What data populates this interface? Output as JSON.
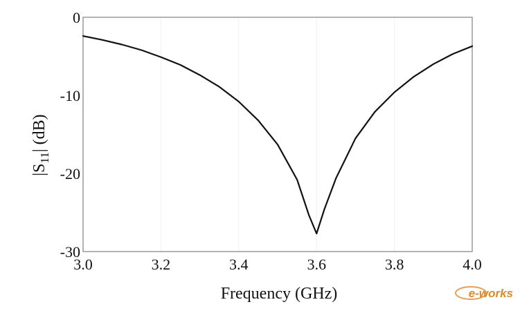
{
  "chart_data": {
    "type": "line",
    "title": "",
    "xlabel": "Frequency (GHz)",
    "ylabel_main": "|S",
    "ylabel_sub": "11",
    "ylabel_tail": "| (dB)",
    "xlim": [
      3.0,
      4.0
    ],
    "ylim": [
      -30,
      0
    ],
    "grid": false,
    "x_ticks": [
      "3.0",
      "3.2",
      "3.4",
      "3.6",
      "3.8",
      "4.0"
    ],
    "y_ticks": [
      "0",
      "-10",
      "-20",
      "-30"
    ],
    "series": [
      {
        "color": "#111111",
        "x": [
          3.0,
          3.05,
          3.1,
          3.15,
          3.2,
          3.25,
          3.3,
          3.35,
          3.4,
          3.45,
          3.5,
          3.55,
          3.58,
          3.6,
          3.62,
          3.65,
          3.7,
          3.75,
          3.8,
          3.85,
          3.9,
          3.95,
          4.0
        ],
        "y": [
          -2.4,
          -2.9,
          -3.5,
          -4.2,
          -5.1,
          -6.1,
          -7.4,
          -8.9,
          -10.8,
          -13.2,
          -16.3,
          -20.8,
          -25.3,
          -27.7,
          -24.6,
          -20.6,
          -15.5,
          -12.1,
          -9.6,
          -7.6,
          -6.0,
          -4.7,
          -3.7
        ]
      }
    ]
  },
  "watermark": {
    "text": "e-works",
    "color": "#d98a2a"
  }
}
